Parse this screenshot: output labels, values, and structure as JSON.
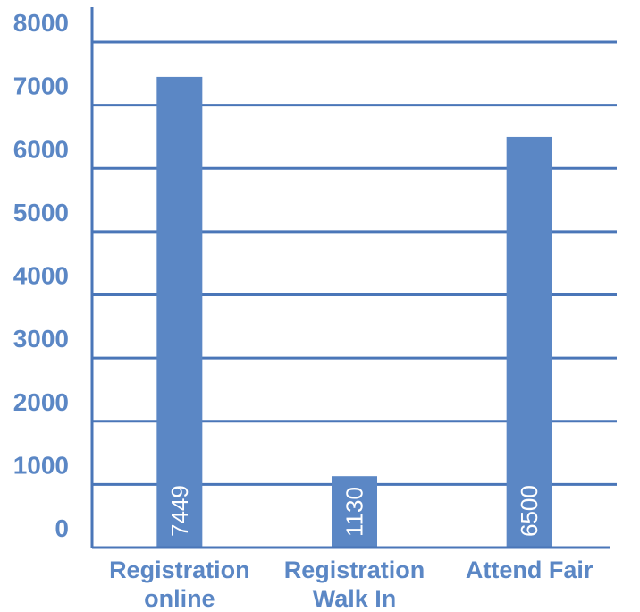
{
  "chart_data": {
    "type": "bar",
    "title": "",
    "xlabel": "",
    "ylabel": "",
    "categories": [
      [
        "Registration",
        "online"
      ],
      [
        "Registration",
        "Walk In"
      ],
      [
        "Attend Fair"
      ]
    ],
    "values": [
      7449,
      1130,
      6500
    ],
    "data_labels": [
      "7449",
      "1130",
      "6500"
    ],
    "ylim": [
      0,
      8000
    ],
    "yticks": [
      0,
      1000,
      2000,
      3000,
      4000,
      5000,
      6000,
      7000,
      8000
    ],
    "ytick_labels": [
      "0",
      "1000",
      "2000",
      "3000",
      "4000",
      "5000",
      "6000",
      "7000",
      "8000"
    ],
    "grid": true,
    "legend": "none",
    "colors": {
      "bar": "#5b87c5",
      "text": "#5b87c5",
      "grid": "#4a76b8",
      "label": "#ffffff"
    }
  }
}
